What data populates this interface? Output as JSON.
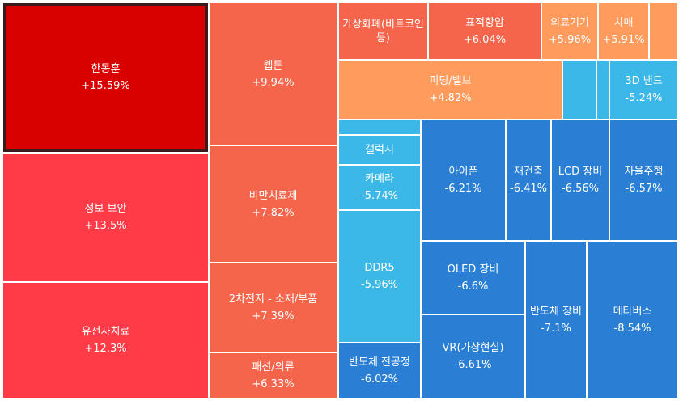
{
  "chart_data": {
    "type": "treemap",
    "tiles": [
      {
        "name": "한동훈",
        "change": "+15.59%",
        "value": 15.59,
        "color": "#d90000",
        "selected": true
      },
      {
        "name": "정보 보안",
        "change": "+13.5%",
        "value": 13.5,
        "color": "#ff3b47"
      },
      {
        "name": "유전자치료",
        "change": "+12.3%",
        "value": 12.3,
        "color": "#ff3b47"
      },
      {
        "name": "웹툰",
        "change": "+9.94%",
        "value": 9.94,
        "color": "#f5654c"
      },
      {
        "name": "비만치료제",
        "change": "+7.82%",
        "value": 7.82,
        "color": "#f5654c"
      },
      {
        "name": "2차전지 - 소재/부품",
        "change": "+7.39%",
        "value": 7.39,
        "color": "#f5654c"
      },
      {
        "name": "패션/의류",
        "change": "+6.33%",
        "value": 6.33,
        "color": "#f5654c"
      },
      {
        "name": "가상화폐(비트코인 등)",
        "change": "",
        "value": null,
        "color": "#f5654c"
      },
      {
        "name": "표적항암",
        "change": "+6.04%",
        "value": 6.04,
        "color": "#f5654c"
      },
      {
        "name": "의료기기",
        "change": "+5.96%",
        "value": 5.96,
        "color": "#ff9b5c"
      },
      {
        "name": "치매",
        "change": "+5.91%",
        "value": 5.91,
        "color": "#ff9b5c"
      },
      {
        "name": "",
        "change": "",
        "value": null,
        "color": "#ff9b5c"
      },
      {
        "name": "피팅/밸브",
        "change": "+4.82%",
        "value": 4.82,
        "color": "#ff9b5c"
      },
      {
        "name": "",
        "change": "",
        "value": null,
        "color": "#3bb8e8"
      },
      {
        "name": "",
        "change": "",
        "value": null,
        "color": "#3bb8e8"
      },
      {
        "name": "3D 낸드",
        "change": "-5.24%",
        "value": -5.24,
        "color": "#3bb8e8"
      },
      {
        "name": "",
        "change": "",
        "value": null,
        "color": "#3bb8e8"
      },
      {
        "name": "갤럭시",
        "change": "",
        "value": null,
        "color": "#3bb8e8"
      },
      {
        "name": "카메라",
        "change": "-5.74%",
        "value": -5.74,
        "color": "#3bb8e8"
      },
      {
        "name": "DDR5",
        "change": "-5.96%",
        "value": -5.96,
        "color": "#3bb8e8"
      },
      {
        "name": "반도체 전공정",
        "change": "-6.02%",
        "value": -6.02,
        "color": "#2a7fd4"
      },
      {
        "name": "아이폰",
        "change": "-6.21%",
        "value": -6.21,
        "color": "#2a7fd4"
      },
      {
        "name": "재건축",
        "change": "-6.41%",
        "value": -6.41,
        "color": "#2a7fd4"
      },
      {
        "name": "LCD 장비",
        "change": "-6.56%",
        "value": -6.56,
        "color": "#2a7fd4"
      },
      {
        "name": "자율주행",
        "change": "-6.57%",
        "value": -6.57,
        "color": "#2a7fd4"
      },
      {
        "name": "OLED 장비",
        "change": "-6.6%",
        "value": -6.6,
        "color": "#2a7fd4"
      },
      {
        "name": "VR(가상현실)",
        "change": "-6.61%",
        "value": -6.61,
        "color": "#2a7fd4"
      },
      {
        "name": "반도체 장비",
        "change": "-7.1%",
        "value": -7.1,
        "color": "#2a7fd4"
      },
      {
        "name": "메타버스",
        "change": "-8.54%",
        "value": -8.54,
        "color": "#2a7fd4"
      }
    ]
  }
}
